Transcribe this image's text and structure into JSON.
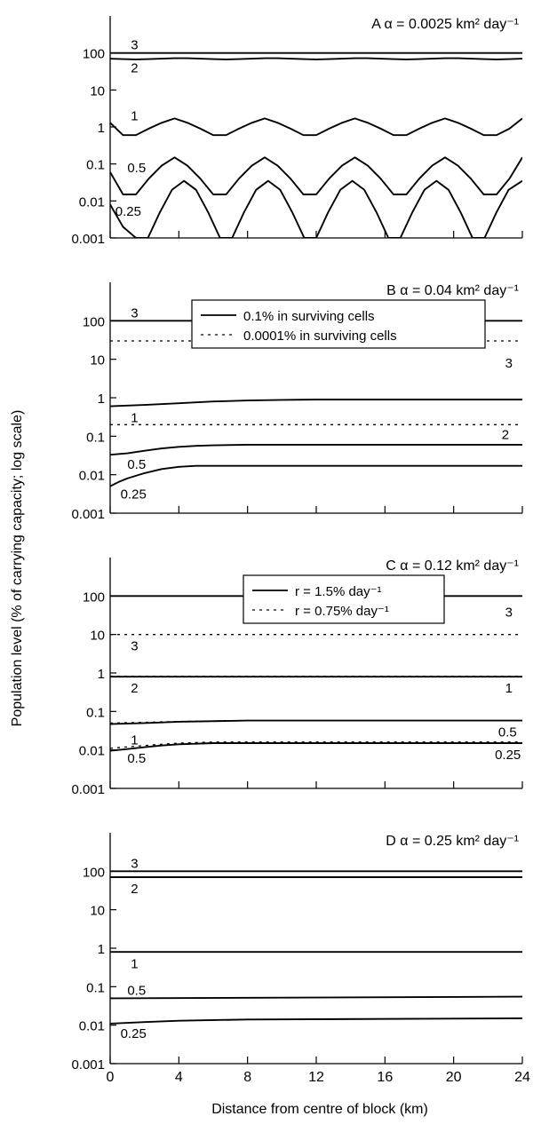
{
  "figure": {
    "ylabel": "Population level (% of carrying capacity; log scale)",
    "xlabel": "Distance from centre of block (km)"
  },
  "chart_data": [
    {
      "type": "line",
      "panel": "A",
      "title": "A    α = 0.0025 km² day⁻¹",
      "x_scale": "linear",
      "y_scale": "log",
      "xlim": [
        0,
        24
      ],
      "ylim": [
        0.001,
        1000
      ],
      "x_ticks": [
        0,
        4,
        8,
        12,
        16,
        20,
        24
      ],
      "y_ticks": [
        0.001,
        0.01,
        0.1,
        1,
        10,
        100
      ],
      "y_tick_labels": [
        "0.001",
        "0.01",
        "0.1",
        "1",
        "10",
        "100"
      ],
      "series": [
        {
          "name": "3",
          "style": "solid",
          "x": [
            0,
            24
          ],
          "y": [
            100,
            100
          ]
        },
        {
          "name": "2",
          "style": "solid",
          "x": [
            0,
            0.75,
            1.5,
            2.25,
            3,
            3.75,
            4.5,
            5.25,
            6,
            6.75,
            7.5,
            8.25,
            9,
            9.75,
            10.5,
            11.25,
            12,
            12.75,
            13.5,
            14.25,
            15,
            15.75,
            16.5,
            17.25,
            18,
            18.75,
            19.5,
            20.25,
            21,
            21.75,
            22.5,
            23.25,
            24
          ],
          "y": [
            70,
            68,
            67,
            68,
            70,
            72,
            72,
            70,
            68,
            67,
            68,
            70,
            72,
            72,
            70,
            68,
            67,
            68,
            70,
            72,
            72,
            70,
            68,
            67,
            68,
            70,
            72,
            72,
            70,
            68,
            67,
            68,
            70
          ]
        },
        {
          "name": "1",
          "style": "solid",
          "x": [
            0,
            0.75,
            1.5,
            2.25,
            3,
            3.75,
            4.5,
            5.25,
            6,
            6.75,
            7.5,
            8.25,
            9,
            9.75,
            10.5,
            11.25,
            12,
            12.75,
            13.5,
            14.25,
            15,
            15.75,
            16.5,
            17.25,
            18,
            18.75,
            19.5,
            20.25,
            21,
            21.75,
            22.5,
            23.25,
            24
          ],
          "y": [
            1.3,
            0.6,
            0.6,
            0.9,
            1.3,
            1.7,
            1.3,
            0.9,
            0.6,
            0.6,
            0.9,
            1.3,
            1.7,
            1.3,
            0.9,
            0.6,
            0.6,
            0.9,
            1.3,
            1.7,
            1.3,
            0.9,
            0.6,
            0.6,
            0.9,
            1.3,
            1.7,
            1.3,
            0.9,
            0.6,
            0.6,
            0.9,
            1.7
          ]
        },
        {
          "name": "0.5",
          "style": "solid",
          "x": [
            0,
            0.75,
            1.5,
            2.25,
            3,
            3.75,
            4.5,
            5.25,
            6,
            6.75,
            7.5,
            8.25,
            9,
            9.75,
            10.5,
            11.25,
            12,
            12.75,
            13.5,
            14.25,
            15,
            15.75,
            16.5,
            17.25,
            18,
            18.75,
            19.5,
            20.25,
            21,
            21.75,
            22.5,
            23.25,
            24
          ],
          "y": [
            0.06,
            0.015,
            0.015,
            0.04,
            0.09,
            0.15,
            0.09,
            0.04,
            0.015,
            0.015,
            0.04,
            0.09,
            0.15,
            0.09,
            0.04,
            0.015,
            0.015,
            0.04,
            0.09,
            0.15,
            0.09,
            0.04,
            0.015,
            0.015,
            0.04,
            0.09,
            0.15,
            0.09,
            0.04,
            0.015,
            0.015,
            0.04,
            0.15
          ]
        },
        {
          "name": "0.25",
          "style": "solid",
          "x": [
            0,
            0.75,
            1.5,
            2.2,
            2.9,
            3.6,
            4.3,
            5.0,
            5.7,
            6.4,
            7.1,
            7.8,
            8.5,
            9.2,
            9.9,
            10.6,
            11.3,
            12.0,
            12.7,
            13.4,
            14.1,
            14.8,
            15.5,
            16.2,
            16.9,
            17.6,
            18.3,
            19.0,
            19.7,
            20.4,
            21.1,
            21.8,
            22.5,
            23.2,
            24
          ],
          "y": [
            0.008,
            0.002,
            0.001,
            0.001,
            0.005,
            0.02,
            0.035,
            0.02,
            0.005,
            0.001,
            0.001,
            0.005,
            0.02,
            0.035,
            0.02,
            0.005,
            0.001,
            0.001,
            0.005,
            0.02,
            0.035,
            0.02,
            0.005,
            0.001,
            0.001,
            0.005,
            0.02,
            0.035,
            0.02,
            0.005,
            0.001,
            0.001,
            0.005,
            0.02,
            0.035
          ]
        }
      ],
      "annotations": [
        {
          "text": "3",
          "x": 1.2,
          "y": 100,
          "dy": -4
        },
        {
          "text": "2",
          "x": 1.2,
          "y": 30,
          "dy": 0
        },
        {
          "text": "1",
          "x": 1.2,
          "y": 1.5,
          "dy": 0
        },
        {
          "text": "0.5",
          "x": 1.0,
          "y": 0.06,
          "dy": 0
        },
        {
          "text": "0.25",
          "x": 0.3,
          "y": 0.004,
          "dy": 0
        }
      ]
    },
    {
      "type": "line",
      "panel": "B",
      "title": "B    α = 0.04 km² day⁻¹",
      "x_scale": "linear",
      "y_scale": "log",
      "xlim": [
        0,
        24
      ],
      "ylim": [
        0.001,
        1000
      ],
      "x_ticks": [
        0,
        4,
        8,
        12,
        16,
        20,
        24
      ],
      "y_ticks": [
        0.001,
        0.01,
        0.1,
        1,
        10,
        100
      ],
      "y_tick_labels": [
        "0.001",
        "0.01",
        "0.1",
        "1",
        "10",
        "100"
      ],
      "legend": {
        "position": "upper-center",
        "entries": [
          {
            "style": "solid",
            "label": "0.1% in surviving cells"
          },
          {
            "style": "dotted",
            "label": "0.0001% in surviving cells"
          }
        ]
      },
      "series": [
        {
          "name": "3 (0.1%)",
          "style": "solid",
          "x": [
            0,
            24
          ],
          "y": [
            100,
            100
          ]
        },
        {
          "name": "3 (0.0001%)",
          "style": "dotted",
          "x": [
            0,
            24
          ],
          "y": [
            30,
            30
          ]
        },
        {
          "name": "1 (0.1%)",
          "style": "solid",
          "x": [
            0,
            2,
            4,
            6,
            8,
            10,
            12,
            24
          ],
          "y": [
            0.6,
            0.65,
            0.72,
            0.8,
            0.85,
            0.88,
            0.9,
            0.9
          ]
        },
        {
          "name": "2 (0.0001%)",
          "style": "dotted",
          "x": [
            0,
            24
          ],
          "y": [
            0.2,
            0.2
          ]
        },
        {
          "name": "0.5",
          "style": "solid",
          "x": [
            0,
            1,
            2,
            3,
            4,
            5,
            6,
            8,
            10,
            24
          ],
          "y": [
            0.033,
            0.036,
            0.042,
            0.048,
            0.053,
            0.056,
            0.058,
            0.06,
            0.06,
            0.06
          ]
        },
        {
          "name": "0.25",
          "style": "solid",
          "x": [
            0,
            0.5,
            1,
            2,
            3,
            4,
            5,
            6,
            8,
            24
          ],
          "y": [
            0.005,
            0.0065,
            0.008,
            0.011,
            0.014,
            0.016,
            0.017,
            0.017,
            0.017,
            0.017
          ]
        }
      ],
      "annotations": [
        {
          "text": "3",
          "x": 1.2,
          "y": 100,
          "dy": -4
        },
        {
          "text": "3",
          "x": 23.0,
          "y": 30,
          "dy": 30
        },
        {
          "text": "1",
          "x": 1.2,
          "y": 0.6,
          "dy": 18
        },
        {
          "text": "2",
          "x": 22.8,
          "y": 0.2,
          "dy": 16
        },
        {
          "text": "0.5",
          "x": 1.0,
          "y": 0.033,
          "dy": 16
        },
        {
          "text": "0.25",
          "x": 0.6,
          "y": 0.005,
          "dy": 14
        }
      ]
    },
    {
      "type": "line",
      "panel": "C",
      "title": "C    α = 0.12 km² day⁻¹",
      "x_scale": "linear",
      "y_scale": "log",
      "xlim": [
        0,
        24
      ],
      "ylim": [
        0.001,
        1000
      ],
      "x_ticks": [
        0,
        4,
        8,
        12,
        16,
        20,
        24
      ],
      "y_ticks": [
        0.001,
        0.01,
        0.1,
        1,
        10,
        100
      ],
      "y_tick_labels": [
        "0.001",
        "0.01",
        "0.1",
        "1",
        "10",
        "100"
      ],
      "legend": {
        "position": "upper-center",
        "entries": [
          {
            "style": "solid",
            "label": "r = 1.5% day⁻¹"
          },
          {
            "style": "dotted",
            "label": "r = 0.75% day⁻¹"
          }
        ]
      },
      "series": [
        {
          "name": "3 (r=1.5%)",
          "style": "solid",
          "x": [
            0,
            24
          ],
          "y": [
            100,
            100
          ]
        },
        {
          "name": "3 (r=0.75%)",
          "style": "dotted",
          "x": [
            0,
            24
          ],
          "y": [
            10,
            10
          ]
        },
        {
          "name": "2 (r=0.75%)",
          "style": "dotted",
          "x": [
            0,
            24
          ],
          "y": [
            0.82,
            0.82
          ]
        },
        {
          "name": "1 (r=1.5%)",
          "style": "solid",
          "x": [
            0,
            24
          ],
          "y": [
            0.8,
            0.8
          ]
        },
        {
          "name": "1 (r=0.75%)",
          "style": "dotted",
          "x": [
            0,
            2,
            4,
            8,
            24
          ],
          "y": [
            0.05,
            0.052,
            0.055,
            0.058,
            0.058
          ]
        },
        {
          "name": "0.5 (r=1.5%)",
          "style": "solid",
          "x": [
            0,
            2,
            4,
            8,
            24
          ],
          "y": [
            0.047,
            0.05,
            0.054,
            0.058,
            0.058
          ]
        },
        {
          "name": "0.5 (r=0.75%)",
          "style": "dotted",
          "x": [
            0,
            1,
            2,
            3,
            4,
            6,
            8,
            24
          ],
          "y": [
            0.011,
            0.012,
            0.013,
            0.014,
            0.015,
            0.016,
            0.016,
            0.016
          ]
        },
        {
          "name": "0.25 (r=1.5%)",
          "style": "solid",
          "x": [
            0,
            1,
            2,
            3,
            4,
            6,
            8,
            24
          ],
          "y": [
            0.0095,
            0.0105,
            0.0118,
            0.013,
            0.014,
            0.015,
            0.015,
            0.015
          ]
        }
      ],
      "annotations": [
        {
          "text": "3",
          "x": 1.2,
          "y": 10,
          "dy": 18
        },
        {
          "text": "3",
          "x": 23.0,
          "y": 10,
          "dy": -20
        },
        {
          "text": "2",
          "x": 1.2,
          "y": 0.8,
          "dy": 18
        },
        {
          "text": "1",
          "x": 23.0,
          "y": 0.8,
          "dy": 18
        },
        {
          "text": "1",
          "x": 1.2,
          "y": 0.05,
          "dy": 24
        },
        {
          "text": "0.5",
          "x": 22.6,
          "y": 0.058,
          "dy": 18
        },
        {
          "text": "0.5",
          "x": 1.0,
          "y": 0.011,
          "dy": 16
        },
        {
          "text": "0.25",
          "x": 22.4,
          "y": 0.015,
          "dy": 18
        }
      ]
    },
    {
      "type": "line",
      "panel": "D",
      "title": "D    α = 0.25 km² day⁻¹",
      "x_scale": "linear",
      "y_scale": "log",
      "xlim": [
        0,
        24
      ],
      "ylim": [
        0.001,
        1000
      ],
      "x_ticks": [
        0,
        4,
        8,
        12,
        16,
        20,
        24
      ],
      "x_tick_labels": [
        "0",
        "4",
        "8",
        "12",
        "16",
        "20",
        "24"
      ],
      "y_ticks": [
        0.001,
        0.01,
        0.1,
        1,
        10,
        100
      ],
      "y_tick_labels": [
        "0.001",
        "0.01",
        "0.1",
        "1",
        "10",
        "100"
      ],
      "series": [
        {
          "name": "3",
          "style": "solid",
          "x": [
            0,
            24
          ],
          "y": [
            100,
            100
          ]
        },
        {
          "name": "2",
          "style": "solid",
          "x": [
            0,
            24
          ],
          "y": [
            70,
            70
          ]
        },
        {
          "name": "1",
          "style": "solid",
          "x": [
            0,
            24
          ],
          "y": [
            0.8,
            0.8
          ]
        },
        {
          "name": "0.5",
          "style": "solid",
          "x": [
            0,
            24
          ],
          "y": [
            0.05,
            0.055
          ]
        },
        {
          "name": "0.25",
          "style": "solid",
          "x": [
            0,
            2,
            4,
            8,
            24
          ],
          "y": [
            0.011,
            0.012,
            0.013,
            0.014,
            0.015
          ]
        }
      ],
      "annotations": [
        {
          "text": "3",
          "x": 1.2,
          "y": 100,
          "dy": -4
        },
        {
          "text": "2",
          "x": 1.2,
          "y": 30,
          "dy": 2
        },
        {
          "text": "1",
          "x": 1.2,
          "y": 0.3,
          "dy": 0
        },
        {
          "text": "0.5",
          "x": 1.0,
          "y": 0.05,
          "dy": -4
        },
        {
          "text": "0.25",
          "x": 0.6,
          "y": 0.011,
          "dy": 16
        }
      ]
    }
  ]
}
